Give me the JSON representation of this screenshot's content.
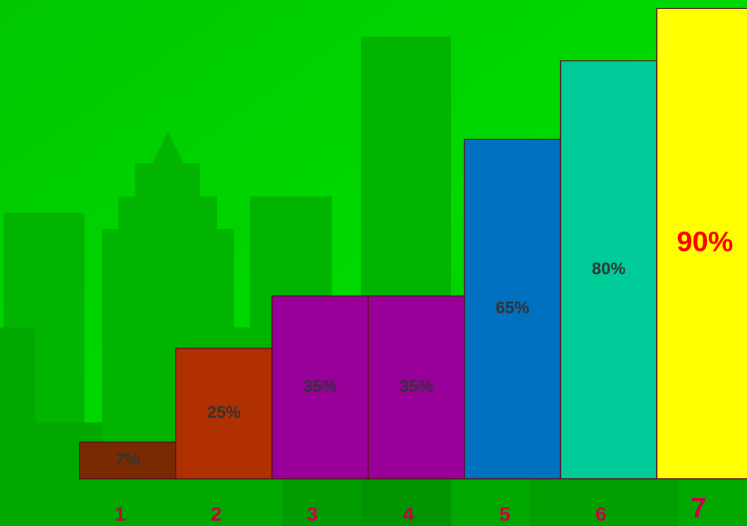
{
  "chart_data": {
    "type": "bar",
    "categories": [
      "1",
      "2",
      "3",
      "4",
      "5",
      "6",
      "7"
    ],
    "values": [
      7,
      25,
      35,
      35,
      65,
      80,
      90
    ],
    "value_labels": [
      "7%",
      "25%",
      "35%",
      "35%",
      "65%",
      "80%",
      "90%"
    ],
    "colors": [
      "#7a2a00",
      "#b03000",
      "#990099",
      "#990099",
      "#0070c0",
      "#00cc99",
      "#ffff00"
    ]
  }
}
